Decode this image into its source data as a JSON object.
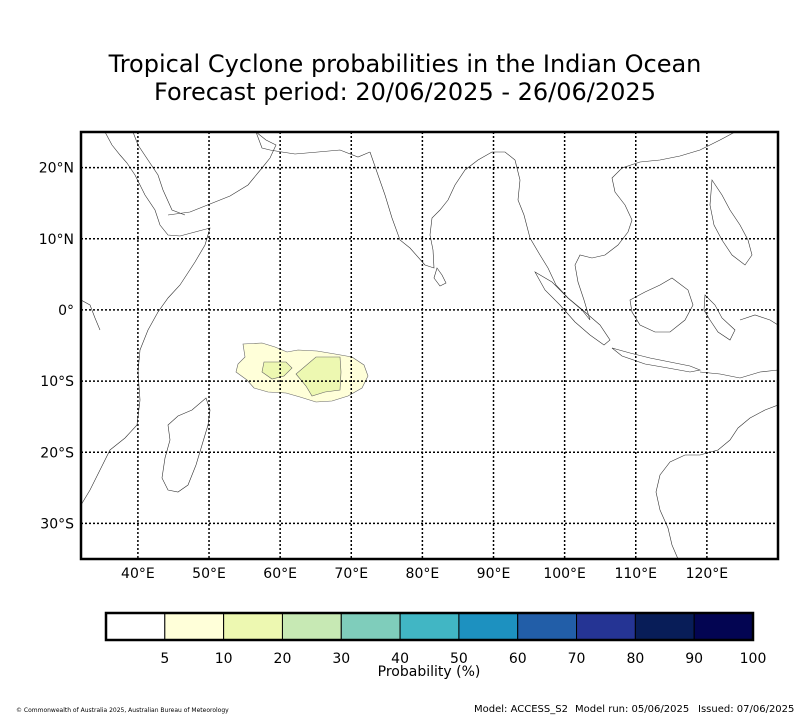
{
  "title_line1": "Tropical Cyclone probabilities in the Indian Ocean",
  "title_line2": "Forecast period: 20/06/2025 - 26/06/2025",
  "map": {
    "lon_range": [
      32,
      130
    ],
    "lat_range": [
      -35,
      25
    ],
    "lat_labels": [
      "20°N",
      "10°N",
      "0°",
      "10°S",
      "20°S",
      "30°S"
    ],
    "lat_values": [
      20,
      10,
      0,
      -10,
      -20,
      -30
    ],
    "lon_labels": [
      "40°E",
      "50°E",
      "60°E",
      "70°E",
      "80°E",
      "90°E",
      "100°E",
      "110°E",
      "120°E"
    ],
    "lon_values": [
      40,
      50,
      60,
      70,
      80,
      90,
      100,
      110,
      120
    ],
    "gridlines": true
  },
  "colorbar": {
    "title": "Probability (%)",
    "ticks": [
      "5",
      "10",
      "20",
      "30",
      "40",
      "50",
      "60",
      "70",
      "80",
      "90",
      "100"
    ],
    "colors": [
      "#ffffff",
      "#ffffd9",
      "#edf8b1",
      "#c7e9b4",
      "#7fcdbb",
      "#41b6c4",
      "#1d91c0",
      "#225ea8",
      "#253494",
      "#081d58",
      "#030552"
    ]
  },
  "footer": {
    "copyright": "© Commonwealth of Australia 2025, Australian Bureau of Meteorology",
    "model": "Model: ACCESS_S2",
    "model_run": "Model run: 05/06/2025",
    "issued": "Issued: 07/06/2025"
  }
}
